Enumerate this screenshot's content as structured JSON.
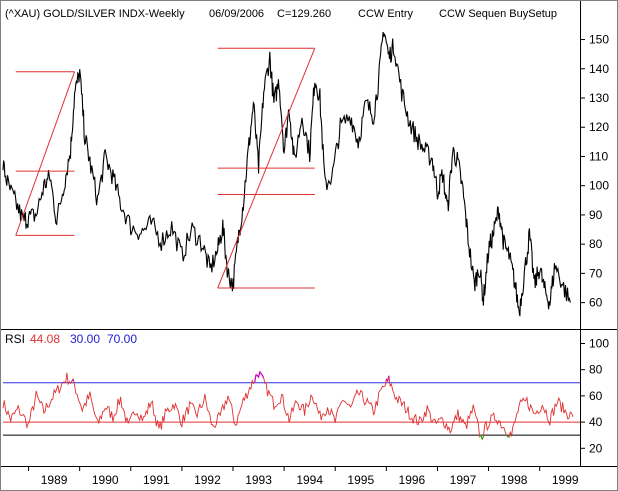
{
  "header": {
    "symbol": "(^XAU) GOLD/SILVER INDX-Weekly",
    "date": "06/09/2006",
    "close": "C=129.260",
    "entry": "CCW Entry",
    "setup": "CCW Sequen BuySetup"
  },
  "rsi_legend": {
    "label": "RSI",
    "value": "44.08",
    "low": "30.00",
    "high": "70.00"
  },
  "colors": {
    "price": "#000000",
    "annotation": "#e03030",
    "rsi": "#e03030",
    "rsi_high_line": "#3030e0",
    "overbought": "#cc00cc",
    "oversold": "#22aa22",
    "border": "#808080"
  },
  "chart_data": [
    {
      "type": "line",
      "title": "(^XAU) GOLD/SILVER INDX-Weekly",
      "x_ticks": [
        "1989",
        "1990",
        "1991",
        "1992",
        "1993",
        "1994",
        "1995",
        "1996",
        "1997",
        "1998",
        "1999"
      ],
      "x_range": [
        1988.5,
        1999.75
      ],
      "y_ticks": [
        60,
        70,
        80,
        90,
        100,
        110,
        120,
        130,
        140,
        150
      ],
      "ylim": [
        52,
        156
      ],
      "series": [
        {
          "x": [
            1988.5,
            1988.6,
            1988.75,
            1988.9,
            1989.0,
            1989.15,
            1989.3,
            1989.42,
            1989.55,
            1989.7,
            1989.82,
            1989.9,
            1990.0,
            1990.1,
            1990.2,
            1990.35,
            1990.5,
            1990.65,
            1990.8,
            1991.0,
            1991.2,
            1991.4,
            1991.6,
            1991.8,
            1992.0,
            1992.2,
            1992.4,
            1992.55,
            1992.7,
            1992.8,
            1992.9,
            1993.0,
            1993.1,
            1993.2,
            1993.3,
            1993.4,
            1993.5,
            1993.6,
            1993.72,
            1993.8,
            1993.9,
            1994.0,
            1994.1,
            1994.2,
            1994.35,
            1994.5,
            1994.6,
            1994.7,
            1994.8,
            1994.95,
            1995.1,
            1995.3,
            1995.45,
            1995.6,
            1995.75,
            1995.85,
            1995.95,
            1996.05,
            1996.15,
            1996.3,
            1996.45,
            1996.6,
            1996.75,
            1996.9,
            1997.0,
            1997.1,
            1997.2,
            1997.3,
            1997.4,
            1997.5,
            1997.6,
            1997.72,
            1997.82,
            1997.9,
            1998.0,
            1998.1,
            1998.2,
            1998.3,
            1998.4,
            1998.5,
            1998.6,
            1998.7,
            1998.8,
            1998.9,
            1999.0,
            1999.1,
            1999.2,
            1999.3,
            1999.45,
            1999.6
          ],
          "y": [
            107,
            100,
            94,
            88,
            89,
            90,
            100,
            103,
            88,
            101,
            112,
            131,
            139,
            117,
            108,
            95,
            110,
            103,
            94,
            86,
            84,
            87,
            81,
            86,
            76,
            85,
            80,
            71,
            78,
            86,
            70,
            66,
            82,
            94,
            112,
            128,
            106,
            132,
            144,
            128,
            136,
            112,
            127,
            108,
            124,
            111,
            137,
            130,
            100,
            104,
            120,
            124,
            115,
            128,
            124,
            136,
            154,
            144,
            148,
            132,
            122,
            116,
            112,
            109,
            98,
            104,
            92,
            112,
            108,
            98,
            82,
            66,
            72,
            61,
            78,
            84,
            92,
            80,
            76,
            68,
            57,
            70,
            83,
            66,
            72,
            64,
            60,
            73,
            66,
            60
          ]
        }
      ]
    },
    {
      "type": "line",
      "title": "RSI",
      "y_ticks": [
        20,
        40,
        60,
        80,
        100
      ],
      "ylim": [
        8,
        108
      ],
      "levels": [
        70,
        40,
        30
      ],
      "series": [
        {
          "name": "RSI",
          "x": [
            1988.5,
            1988.65,
            1988.8,
            1989.0,
            1989.15,
            1989.3,
            1989.45,
            1989.6,
            1989.75,
            1989.9,
            1990.05,
            1990.2,
            1990.35,
            1990.5,
            1990.65,
            1990.8,
            1990.95,
            1991.1,
            1991.25,
            1991.4,
            1991.55,
            1991.7,
            1991.85,
            1992.0,
            1992.15,
            1992.3,
            1992.45,
            1992.6,
            1992.75,
            1992.9,
            1993.05,
            1993.2,
            1993.35,
            1993.5,
            1993.65,
            1993.8,
            1993.95,
            1994.1,
            1994.25,
            1994.4,
            1994.55,
            1994.7,
            1994.85,
            1995.0,
            1995.15,
            1995.3,
            1995.45,
            1995.6,
            1995.75,
            1995.9,
            1996.05,
            1996.2,
            1996.35,
            1996.5,
            1996.65,
            1996.8,
            1996.95,
            1997.1,
            1997.25,
            1997.4,
            1997.55,
            1997.7,
            1997.85,
            1998.0,
            1998.15,
            1998.3,
            1998.45,
            1998.6,
            1998.75,
            1998.9,
            1999.05,
            1999.2,
            1999.35,
            1999.5,
            1999.65
          ],
          "y": [
            55,
            42,
            50,
            38,
            60,
            48,
            58,
            66,
            74,
            68,
            50,
            60,
            38,
            52,
            44,
            58,
            36,
            50,
            42,
            56,
            34,
            48,
            54,
            40,
            52,
            46,
            58,
            36,
            44,
            60,
            38,
            56,
            68,
            78,
            66,
            54,
            60,
            42,
            56,
            48,
            62,
            44,
            52,
            40,
            58,
            50,
            62,
            56,
            48,
            64,
            72,
            58,
            52,
            44,
            40,
            50,
            38,
            42,
            34,
            46,
            36,
            50,
            28,
            40,
            44,
            36,
            30,
            52,
            56,
            46,
            54,
            42,
            56,
            48,
            44
          ]
        }
      ]
    }
  ],
  "annotations": {
    "boxes": [
      {
        "x1": 1988.75,
        "x2": 1989.9,
        "top": 139,
        "mid": 105,
        "bottom": 83
      },
      {
        "x1": 1992.7,
        "x2": 1994.6,
        "top": 147,
        "mid": 106,
        "mid2": 97,
        "bottom": 65
      }
    ],
    "diagonals": [
      {
        "x1": 1988.75,
        "y1": 83,
        "x2": 1989.9,
        "y2": 139
      },
      {
        "x1": 1992.7,
        "y1": 65,
        "x2": 1994.6,
        "y2": 147
      }
    ]
  }
}
